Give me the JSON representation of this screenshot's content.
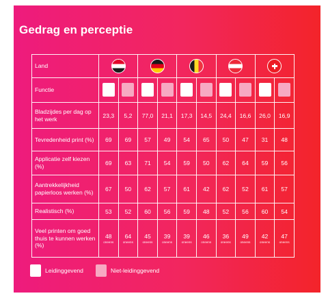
{
  "title": "Gedrag en perceptie",
  "header": {
    "land_label": "Land",
    "functie_label": "Functie"
  },
  "countries": [
    {
      "flag": "netherlands-flag-icon"
    },
    {
      "flag": "germany-flag-icon"
    },
    {
      "flag": "belgium-flag-icon"
    },
    {
      "flag": "austria-flag-icon"
    },
    {
      "flag": "switzerland-flag-icon"
    }
  ],
  "rows": [
    {
      "label": "Bladzijdes per dag op het werk",
      "values": [
        "23,3",
        "5,2",
        "77,0",
        "21,1",
        "17,3",
        "14,5",
        "24,4",
        "16,6",
        "26,0",
        "16,9"
      ]
    },
    {
      "label": "Tevredenheid print (%)",
      "values": [
        "69",
        "69",
        "57",
        "49",
        "54",
        "65",
        "50",
        "47",
        "31",
        "48"
      ]
    },
    {
      "label": "Applicatie zelf kiezen (%)",
      "values": [
        "69",
        "63",
        "71",
        "54",
        "59",
        "50",
        "62",
        "64",
        "59",
        "56"
      ]
    },
    {
      "label": "Aantrekkelijkheid papierloos werken (%)",
      "values": [
        "67",
        "50",
        "62",
        "57",
        "61",
        "42",
        "62",
        "52",
        "61",
        "57"
      ]
    },
    {
      "label": "Realistisch (%)",
      "values": [
        "53",
        "52",
        "60",
        "56",
        "59",
        "48",
        "52",
        "56",
        "60",
        "54"
      ]
    },
    {
      "label": "Veel printen om goed thuis te kunnen werken (%)",
      "values": [
        "48",
        "64",
        "45",
        "39",
        "39",
        "46",
        "36",
        "49",
        "42",
        "47"
      ]
    }
  ],
  "sub_label": "oneens",
  "legend": {
    "leading": "Leidinggevend",
    "non_leading": "Niet-leidinggevend"
  },
  "colors": {
    "leading_icon": "#ffffff",
    "non_leading_icon": "#f7a9c2",
    "gradient_start": "#ee1b7d",
    "gradient_end": "#f3242a"
  }
}
